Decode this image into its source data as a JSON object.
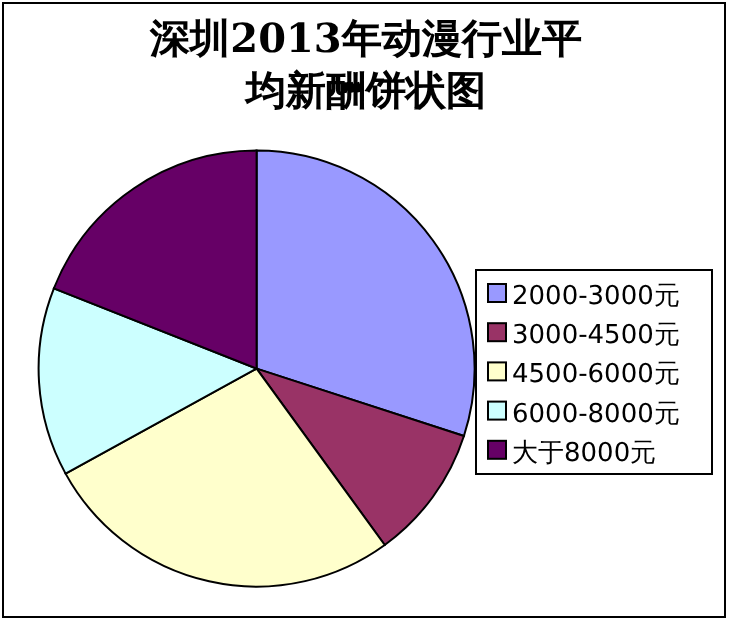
{
  "chart_data": {
    "type": "pie",
    "title": "深圳2013年动漫行业平均新酬饼状图",
    "categories": [
      "2000-3000元",
      "3000-4500元",
      "4500-6000元",
      "6000-8000元",
      "大于8000元"
    ],
    "values": [
      30,
      10,
      27,
      14,
      19
    ],
    "colors": [
      "#9999ff",
      "#993366",
      "#ffffcc",
      "#ccffff",
      "#660066"
    ],
    "legend": "right"
  }
}
